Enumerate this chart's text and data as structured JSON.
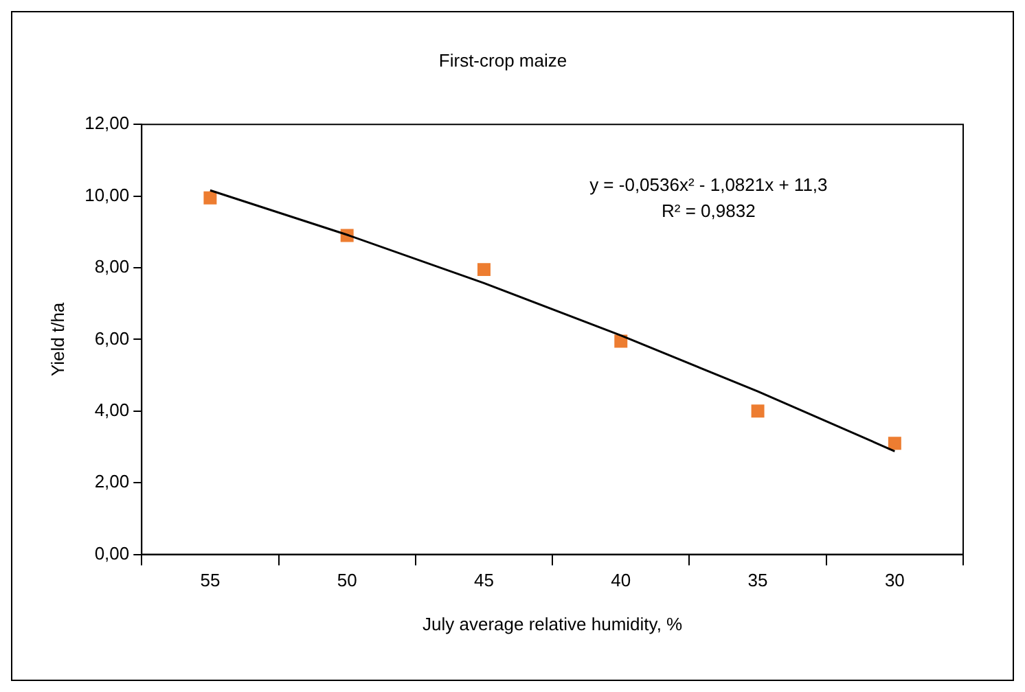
{
  "chart_data": {
    "type": "scatter",
    "title": "First-crop maize",
    "xlabel": "July average relative humidity, %",
    "ylabel": "Yield t/ha",
    "categories": [
      "55",
      "50",
      "45",
      "40",
      "35",
      "30"
    ],
    "series": [
      {
        "color": "#ed7d31",
        "marker": "square",
        "values": [
          9.95,
          8.9,
          7.95,
          5.95,
          4.0,
          3.1
        ]
      },
      {
        "type": "line",
        "color": "#000000",
        "marker": "none",
        "line_style": "solid",
        "values": [
          10.16,
          8.92,
          7.57,
          6.11,
          4.55,
          2.88
        ]
      }
    ],
    "ylim": [
      0,
      12
    ],
    "yticks": [
      {
        "value": 0,
        "label": "0,00"
      },
      {
        "value": 2,
        "label": "2,00"
      },
      {
        "value": 4,
        "label": "4,00"
      },
      {
        "value": 6,
        "label": "6,00"
      },
      {
        "value": 8,
        "label": "8,00"
      },
      {
        "value": 10,
        "label": "10,00"
      },
      {
        "value": 12,
        "label": "12,00"
      }
    ],
    "annotations": [
      "y = -0,0536x² - 1,0821x + 11,3",
      "R² = 0,9832"
    ],
    "grid": false,
    "legend": false
  }
}
